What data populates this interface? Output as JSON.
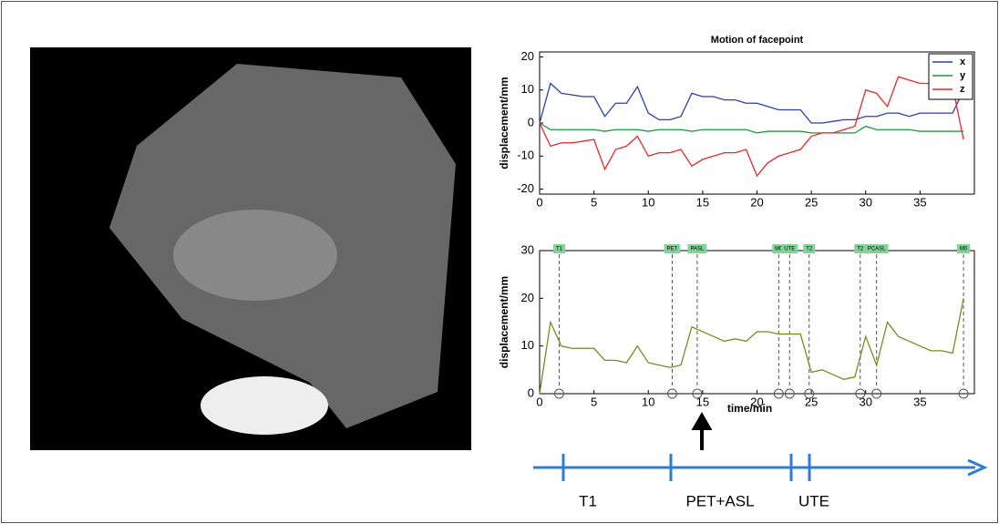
{
  "chart_data": [
    {
      "type": "line",
      "title": "Motion of facepoint",
      "y_label": "displacement/mm",
      "x": [
        0,
        1,
        2,
        3,
        4,
        5,
        6,
        7,
        8,
        9,
        10,
        11,
        12,
        13,
        14,
        15,
        16,
        17,
        18,
        19,
        20,
        21,
        22,
        23,
        24,
        25,
        26,
        27,
        28,
        29,
        30,
        31,
        32,
        33,
        34,
        35,
        36,
        37,
        38,
        39
      ],
      "series": [
        {
          "name": "x",
          "color": "#2b3fb0",
          "values": [
            0,
            12,
            9,
            8.5,
            8,
            8,
            2,
            6,
            6,
            11,
            3,
            1,
            1,
            2,
            9,
            8,
            8,
            7,
            7,
            6,
            6,
            5,
            4,
            4,
            4,
            0,
            0,
            0.5,
            1,
            1,
            2,
            2,
            3,
            3,
            2,
            3,
            3,
            3,
            3,
            10
          ]
        },
        {
          "name": "y",
          "color": "#1a9a3a",
          "values": [
            0,
            -2,
            -2,
            -2,
            -2,
            -2,
            -2.5,
            -2,
            -2,
            -2,
            -2.5,
            -2,
            -2,
            -2,
            -2.5,
            -2,
            -2,
            -2,
            -2,
            -2,
            -3,
            -2.5,
            -2.5,
            -2.5,
            -2.5,
            -3,
            -3,
            -3,
            -3,
            -3,
            -1,
            -2,
            -2,
            -2,
            -2,
            -2.5,
            -2.5,
            -2.5,
            -2.5,
            -2.5
          ]
        },
        {
          "name": "z",
          "color": "#e8282a",
          "values": [
            0,
            -7,
            -6,
            -6,
            -5.5,
            -5,
            -14,
            -8,
            -7,
            -4,
            -10,
            -9,
            -9,
            -8,
            -13,
            -11,
            -10,
            -9,
            -9,
            -8,
            -16,
            -12,
            -10,
            -9,
            -8,
            -4,
            -3,
            -3,
            -2,
            -1,
            10,
            9,
            5,
            14,
            13,
            12,
            12,
            13,
            11,
            -5
          ]
        }
      ],
      "xlim": [
        0,
        40
      ],
      "xticks": [
        0,
        5,
        10,
        15,
        20,
        25,
        30,
        35
      ],
      "ylim": [
        -21.5,
        21.5
      ],
      "yticks": [
        -20,
        -10,
        0,
        10,
        20
      ],
      "legend": "upper right"
    },
    {
      "type": "line",
      "x_label": "time/min",
      "y_label": "displacement/mm",
      "x": [
        0,
        1,
        2,
        3,
        4,
        5,
        6,
        7,
        8,
        9,
        10,
        11,
        12,
        13,
        14,
        15,
        16,
        17,
        18,
        19,
        20,
        21,
        22,
        23,
        24,
        25,
        26,
        27,
        28,
        29,
        30,
        31,
        32,
        33,
        34,
        35,
        36,
        37,
        38,
        39
      ],
      "series": [
        {
          "color": "#7a8a22",
          "values": [
            0,
            15,
            10,
            9.5,
            9.5,
            9.5,
            7,
            7,
            6.5,
            10,
            6.5,
            6,
            5.5,
            6,
            14,
            13,
            12,
            11,
            11.5,
            11,
            13,
            13,
            12.5,
            12.5,
            12.5,
            4.5,
            5,
            4,
            3,
            3.5,
            12,
            6,
            15,
            12,
            11,
            10,
            9,
            9,
            8.5,
            20
          ]
        }
      ],
      "events": [
        {
          "x": 1.8,
          "label": "T1"
        },
        {
          "x": 12.2,
          "label": "PET"
        },
        {
          "x": 14.5,
          "label": "PASL"
        },
        {
          "x": 22,
          "label": "M0"
        },
        {
          "x": 23,
          "label": "UTE"
        },
        {
          "x": 24.8,
          "label": "T2"
        },
        {
          "x": 29.5,
          "label": "T2"
        },
        {
          "x": 31,
          "label": "PCASL"
        },
        {
          "x": 39,
          "label": "M0"
        }
      ],
      "xlim": [
        0,
        40
      ],
      "xticks": [
        0,
        5,
        10,
        15,
        20,
        25,
        30,
        35
      ],
      "ylim": [
        0,
        30
      ],
      "yticks": [
        0,
        10,
        20,
        30
      ]
    }
  ],
  "timeline": {
    "labels": [
      "T1",
      "PET+ASL",
      "UTE"
    ]
  }
}
